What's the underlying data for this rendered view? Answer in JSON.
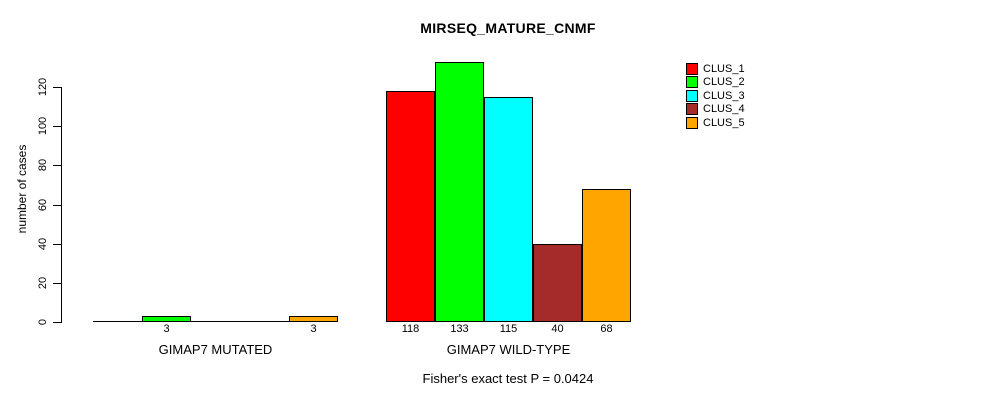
{
  "chart_data": {
    "type": "bar",
    "title": "MIRSEQ_MATURE_CNMF",
    "ylabel": "number of cases",
    "xlabel": "",
    "groups": [
      "GIMAP7 MUTATED",
      "GIMAP7 WILD-TYPE"
    ],
    "series": [
      {
        "name": "CLUS_1",
        "color": "#FF0000",
        "values": [
          0,
          118
        ]
      },
      {
        "name": "CLUS_2",
        "color": "#00FF00",
        "values": [
          3,
          133
        ]
      },
      {
        "name": "CLUS_3",
        "color": "#00FFFF",
        "values": [
          0,
          115
        ]
      },
      {
        "name": "CLUS_4",
        "color": "#A52A2A",
        "values": [
          0,
          40
        ]
      },
      {
        "name": "CLUS_5",
        "color": "#FFA500",
        "values": [
          3,
          68
        ]
      }
    ],
    "yticks": [
      0,
      20,
      40,
      60,
      80,
      100,
      120
    ],
    "ylim": [
      0,
      133
    ],
    "grid": false,
    "legend_position": "top-right",
    "bar_value_labels_shown_for_zero": false,
    "annotation": "Fisher's exact test P = 0.0424",
    "background_color": "#FFFFFF",
    "axis_color": "#000000"
  }
}
